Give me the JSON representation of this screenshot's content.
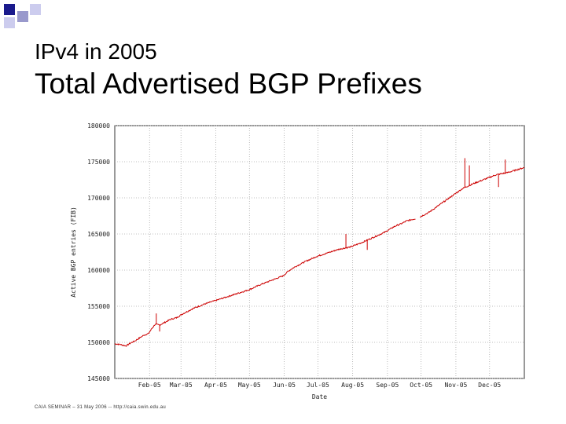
{
  "slide": {
    "subtitle": "IPv4 in 2005",
    "title": "Total Advertised BGP Prefixes",
    "footer": "CAIA SEMINAR – 31 May 2006 -- http://caia.swin.edu.au",
    "bullet_colors": [
      "#1a1a8c",
      "#9999cc",
      "#ccccee"
    ]
  },
  "chart_data": {
    "type": "line",
    "xlabel": "Date",
    "ylabel": "Active BGP entries (FIB)",
    "yticks": [
      145000,
      150000,
      155000,
      160000,
      165000,
      170000,
      175000,
      180000
    ],
    "ylim": [
      145000,
      180000
    ],
    "xlim": [
      0,
      365
    ],
    "xticks": [
      {
        "day": 31,
        "label": "Feb-05"
      },
      {
        "day": 59,
        "label": "Mar-05"
      },
      {
        "day": 90,
        "label": "Apr-05"
      },
      {
        "day": 120,
        "label": "May-05"
      },
      {
        "day": 151,
        "label": "Jun-05"
      },
      {
        "day": 181,
        "label": "Jul-05"
      },
      {
        "day": 212,
        "label": "Aug-05"
      },
      {
        "day": 243,
        "label": "Sep-05"
      },
      {
        "day": 273,
        "label": "Oct-05"
      },
      {
        "day": 304,
        "label": "Nov-05"
      },
      {
        "day": 334,
        "label": "Dec-05"
      }
    ],
    "grid": true,
    "line_color": "#cc0000",
    "series": [
      {
        "x": [
          0,
          5,
          10,
          14,
          18,
          22,
          26,
          30,
          33,
          36,
          40,
          45,
          50,
          55,
          60,
          70,
          80,
          90,
          100,
          110,
          120,
          130,
          140,
          150,
          155,
          160,
          170,
          180,
          190,
          200,
          210,
          220,
          230,
          240,
          250,
          255,
          260,
          270,
          280,
          290,
          300,
          310,
          320,
          330,
          340,
          350,
          365
        ],
        "y": [
          149800,
          149700,
          149500,
          149900,
          150200,
          150600,
          151000,
          151200,
          151900,
          152500,
          152400,
          152800,
          153200,
          153400,
          153900,
          154700,
          155300,
          155800,
          156300,
          156800,
          157300,
          158000,
          158600,
          159200,
          159900,
          160400,
          161200,
          161900,
          162400,
          162900,
          163200,
          163800,
          164500,
          165200,
          166100,
          166400,
          166800,
          167200,
          168000,
          169100,
          170200,
          171300,
          172000,
          172600,
          173200,
          173500,
          174200
        ]
      }
    ],
    "spikes": [
      {
        "day": 37,
        "peak": 154000
      },
      {
        "day": 40,
        "peak": 151500
      },
      {
        "day": 206,
        "peak": 165000
      },
      {
        "day": 225,
        "peak": 162800
      },
      {
        "day": 312,
        "peak": 175500
      },
      {
        "day": 316,
        "peak": 174500
      },
      {
        "day": 342,
        "peak": 171500
      },
      {
        "day": 348,
        "peak": 175300
      }
    ],
    "gaps": [
      [
        268,
        272
      ]
    ]
  }
}
